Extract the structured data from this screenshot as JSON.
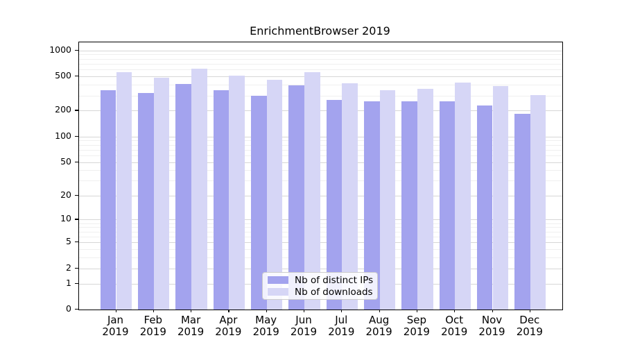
{
  "chart_data": {
    "type": "bar",
    "title": "EnrichmentBrowser 2019",
    "categories": [
      "Jan 2019",
      "Feb 2019",
      "Mar 2019",
      "Apr 2019",
      "May 2019",
      "Jun 2019",
      "Jul 2019",
      "Aug 2019",
      "Sep 2019",
      "Oct 2019",
      "Nov 2019",
      "Dec 2019"
    ],
    "series": [
      {
        "name": "Nb of distinct IPs",
        "color": "#a3a3ee",
        "values": [
          343,
          322,
          405,
          343,
          296,
          390,
          265,
          258,
          255,
          258,
          228,
          185
        ]
      },
      {
        "name": "Nb of downloads",
        "color": "#d6d6f6",
        "values": [
          560,
          481,
          615,
          511,
          460,
          558,
          417,
          345,
          360,
          425,
          385,
          302
        ]
      }
    ],
    "xlabel": "",
    "ylabel": "",
    "yscale": "log1p",
    "yticks": [
      0,
      1,
      2,
      5,
      10,
      20,
      50,
      100,
      200,
      500,
      1000
    ],
    "ylim": [
      0,
      1240
    ],
    "grid": "horizontal, major and minor",
    "legend_position": "lower center"
  }
}
